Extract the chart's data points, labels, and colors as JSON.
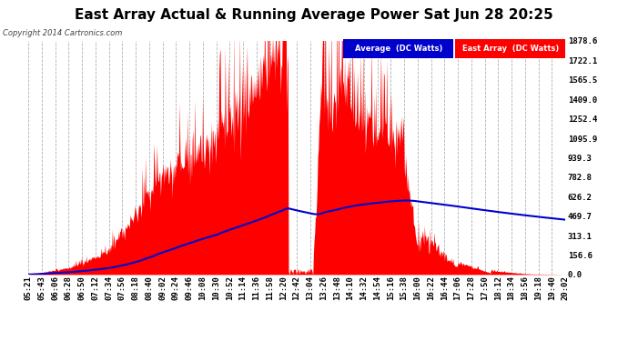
{
  "title": "East Array Actual & Running Average Power Sat Jun 28 20:25",
  "copyright": "Copyright 2014 Cartronics.com",
  "ylabel_right_values": [
    0.0,
    156.6,
    313.1,
    469.7,
    626.2,
    782.8,
    939.3,
    1095.9,
    1252.4,
    1409.0,
    1565.5,
    1722.1,
    1878.6
  ],
  "ymax": 1878.6,
  "bg_color": "#ffffff",
  "plot_bg_color": "#ffffff",
  "grid_color": "#b0b0b0",
  "bar_color": "#ff0000",
  "avg_line_color": "#0000cc",
  "legend_avg_color": "#0000cc",
  "legend_east_color": "#ff0000",
  "title_fontsize": 11,
  "tick_fontsize": 6.5,
  "x_tick_labels": [
    "05:21",
    "05:43",
    "06:06",
    "06:28",
    "06:50",
    "07:12",
    "07:34",
    "07:56",
    "08:18",
    "08:40",
    "09:02",
    "09:24",
    "09:46",
    "10:08",
    "10:30",
    "10:52",
    "11:14",
    "11:36",
    "11:58",
    "12:20",
    "12:42",
    "13:04",
    "13:26",
    "13:48",
    "14:10",
    "14:32",
    "14:54",
    "15:16",
    "15:38",
    "16:00",
    "16:22",
    "16:44",
    "17:06",
    "17:28",
    "17:50",
    "18:12",
    "18:34",
    "18:56",
    "19:18",
    "19:40",
    "20:02"
  ],
  "seed": 12345
}
